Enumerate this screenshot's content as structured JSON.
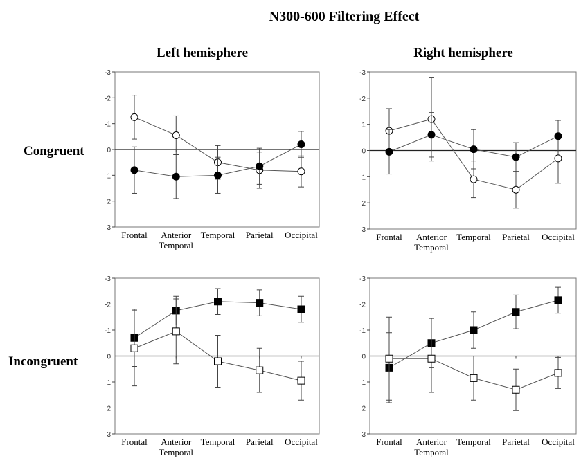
{
  "figure": {
    "title": "N300-600 Filtering Effect",
    "col_headers": [
      "Left hemisphere",
      "Right hemisphere"
    ],
    "row_headers": [
      "Congruent",
      "Incongruent"
    ]
  },
  "chart_data": [
    {
      "type": "line",
      "panel": "Congruent - Left hemisphere",
      "categories": [
        "Frontal",
        "Anterior\nTemporal",
        "Temporal",
        "Parietal",
        "Occipital"
      ],
      "y_ticks": [
        "-3",
        "-2",
        "-1",
        "0",
        "1",
        "2",
        "3"
      ],
      "ylim": [
        -3,
        3
      ],
      "y_inverted": true,
      "series": [
        {
          "marker": "open-circle",
          "values": [
            -1.25,
            -0.55,
            0.5,
            0.8,
            0.85
          ],
          "errors": [
            0.85,
            0.75,
            0.65,
            0.7,
            0.6
          ]
        },
        {
          "marker": "filled-circle",
          "values": [
            0.8,
            1.05,
            1.0,
            0.65,
            -0.2
          ],
          "errors": [
            0.9,
            0.85,
            0.7,
            0.7,
            0.5
          ]
        }
      ]
    },
    {
      "type": "line",
      "panel": "Congruent - Right hemisphere",
      "categories": [
        "Frontal",
        "Anterior\nTemporal",
        "Temporal",
        "Parietal",
        "Occipital"
      ],
      "y_ticks": [
        "-3",
        "-2",
        "-1",
        "0",
        "1",
        "2",
        "3"
      ],
      "ylim": [
        -3,
        3
      ],
      "y_inverted": true,
      "series": [
        {
          "marker": "open-circle",
          "values": [
            -0.75,
            -1.2,
            1.1,
            1.5,
            0.3
          ],
          "errors": [
            0.85,
            1.6,
            0.7,
            0.7,
            0.95
          ]
        },
        {
          "marker": "filled-circle",
          "values": [
            0.05,
            -0.6,
            -0.05,
            0.25,
            -0.55
          ],
          "errors": [
            0.85,
            0.85,
            0.75,
            0.55,
            0.6
          ]
        }
      ]
    },
    {
      "type": "line",
      "panel": "Incongruent - Left hemisphere",
      "categories": [
        "Frontal",
        "Anterior\nTemporal",
        "Temporal",
        "Parietal",
        "Occipital"
      ],
      "y_ticks": [
        "-3",
        "-2",
        "-1",
        "0",
        "1",
        "2",
        "3"
      ],
      "ylim": [
        -3,
        3
      ],
      "y_inverted": true,
      "series": [
        {
          "marker": "filled-square",
          "values": [
            -0.7,
            -1.75,
            -2.1,
            -2.05,
            -1.8
          ],
          "errors": [
            1.1,
            0.55,
            0.5,
            0.5,
            0.5
          ]
        },
        {
          "marker": "open-square",
          "values": [
            -0.3,
            -0.95,
            0.2,
            0.55,
            0.95
          ],
          "errors": [
            1.45,
            1.25,
            1.0,
            0.85,
            0.75
          ]
        }
      ]
    },
    {
      "type": "line",
      "panel": "Incongruent - Right hemisphere",
      "categories": [
        "Frontal",
        "Anterior\nTemporal",
        "Temporal",
        "Parietal",
        "Occipital"
      ],
      "y_ticks": [
        "-3",
        "-2",
        "-1",
        "0",
        "1",
        "2",
        "3"
      ],
      "ylim": [
        -3,
        3
      ],
      "y_inverted": true,
      "series": [
        {
          "marker": "filled-square",
          "values": [
            0.45,
            -0.5,
            -1.0,
            -1.7,
            -2.15
          ],
          "errors": [
            1.35,
            0.95,
            0.7,
            0.65,
            0.5
          ]
        },
        {
          "marker": "open-square",
          "values": [
            0.1,
            0.1,
            0.85,
            1.3,
            0.65
          ],
          "errors": [
            1.6,
            1.3,
            0.85,
            0.8,
            0.6
          ]
        }
      ]
    }
  ]
}
